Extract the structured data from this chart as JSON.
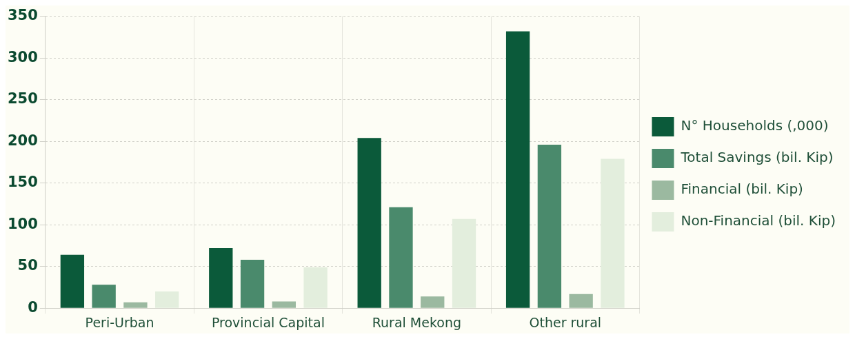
{
  "chart_data": {
    "type": "bar",
    "categories": [
      "Peri-Urban",
      "Provincial Capital",
      "Rural Mekong",
      "Other rural"
    ],
    "series": [
      {
        "name": "N° Households (,000)",
        "color": "#0b5a3a",
        "values": [
          64,
          72,
          204,
          332
        ]
      },
      {
        "name": "Total Savings (bil. Kip)",
        "color": "#4a8a6c",
        "values": [
          28,
          58,
          121,
          196
        ]
      },
      {
        "name": "Financial (bil. Kip)",
        "color": "#9bb9a0",
        "values": [
          7,
          8,
          14,
          17
        ]
      },
      {
        "name": "Non-Financial (bil. Kip)",
        "color": "#e3eedd",
        "values": [
          20,
          49,
          107,
          179
        ]
      }
    ],
    "ylim": [
      0,
      350
    ],
    "yticks": [
      0,
      50,
      100,
      150,
      200,
      250,
      300,
      350
    ],
    "grid": true,
    "legend": "right"
  }
}
